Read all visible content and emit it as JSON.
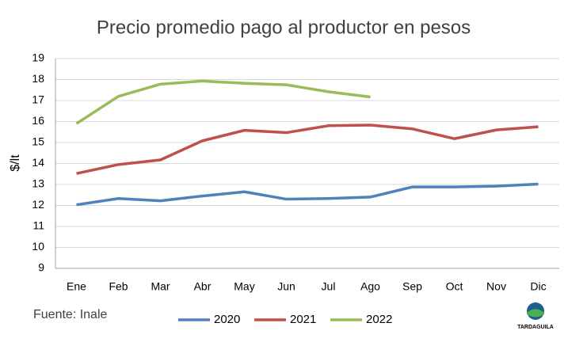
{
  "chart_data": {
    "type": "line",
    "title": "Precio promedio pago al productor en pesos",
    "y_label": "$/lt",
    "categories": [
      "Ene",
      "Feb",
      "Mar",
      "Abr",
      "May",
      "Jun",
      "Jul",
      "Ago",
      "Sep",
      "Oct",
      "Nov",
      "Dic"
    ],
    "series": [
      {
        "name": "2020",
        "color": "#4f81bd",
        "values": [
          12.03,
          12.33,
          12.22,
          12.45,
          12.65,
          12.3,
          12.33,
          12.4,
          12.88,
          12.88,
          12.92,
          13.02
        ]
      },
      {
        "name": "2021",
        "color": "#c0504d",
        "values": [
          13.52,
          13.95,
          14.17,
          15.08,
          15.58,
          15.47,
          15.8,
          15.83,
          15.65,
          15.18,
          15.6,
          15.75
        ]
      },
      {
        "name": "2022",
        "color": "#9bbb59",
        "values": [
          15.9,
          17.2,
          17.78,
          17.93,
          17.82,
          17.75,
          17.42,
          17.17,
          null,
          null,
          null,
          null
        ]
      }
    ],
    "ylim": [
      9,
      19
    ],
    "yticks": [
      9,
      10,
      11,
      12,
      13,
      14,
      15,
      16,
      17,
      18,
      19
    ],
    "grid": true,
    "legend": "bottom",
    "source": "Fuente: Inale",
    "logo_text": "TARDAGUILA"
  }
}
